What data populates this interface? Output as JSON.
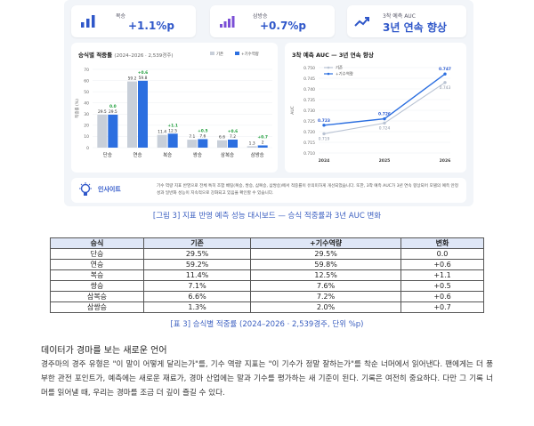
{
  "kpis": [
    {
      "label": "복승",
      "value": "+1.1%p",
      "icon": "bar-chart-icon"
    },
    {
      "label": "삼방승",
      "value": "+0.7%p",
      "icon": "growth-bar-icon"
    },
    {
      "label": "3착 예측 AUC",
      "value": "3년 연속 향상",
      "icon": "trend-up-icon"
    }
  ],
  "left_chart": {
    "title": "승식별 적중률",
    "subtitle": "(2024–2026 · 2,539경주)",
    "legend": [
      "기존",
      "+기수역량"
    ]
  },
  "right_chart": {
    "title": "3착 예측 AUC — 3년 연속 향상",
    "legend": [
      "기존",
      "+기수역량"
    ]
  },
  "chart_data": [
    {
      "type": "bar",
      "title": "승식별 적중률 (2024–2026 · 2,539경주)",
      "ylabel": "적중률 (%)",
      "ylim": [
        0,
        70
      ],
      "yticks": [
        0,
        10,
        20,
        30,
        40,
        50,
        60,
        70
      ],
      "categories": [
        "단승",
        "연승",
        "복승",
        "쌍승",
        "삼복승",
        "삼쌍승"
      ],
      "series": [
        {
          "name": "기존",
          "values": [
            29.5,
            59.2,
            11.4,
            7.1,
            6.6,
            1.3
          ],
          "color": "#c8cfd9"
        },
        {
          "name": "+기수역량",
          "values": [
            29.5,
            59.8,
            12.5,
            7.6,
            7.2,
            2.0
          ],
          "color": "#2c6fe0"
        }
      ],
      "delta_labels": [
        "0.0",
        "+0.6",
        "+1.1",
        "+0.5",
        "+0.6",
        "+0.7"
      ],
      "legend_position": "top-right"
    },
    {
      "type": "line",
      "title": "3착 예측 AUC — 3년 연속 향상",
      "ylabel": "AUC",
      "x": [
        "2024",
        "2025",
        "2026"
      ],
      "ylim": [
        0.71,
        0.75
      ],
      "yticks": [
        0.71,
        0.715,
        0.72,
        0.725,
        0.73,
        0.735,
        0.74,
        0.745,
        0.75
      ],
      "series": [
        {
          "name": "기존",
          "values": [
            0.719,
            0.724,
            0.743
          ],
          "labels": [
            "0.719",
            "0.724",
            "0.743"
          ],
          "color": "#b9c3d3"
        },
        {
          "name": "+기수역량",
          "values": [
            0.723,
            0.726,
            0.747
          ],
          "labels": [
            "0.723",
            "0.726",
            "0.747"
          ],
          "color": "#2c6fe0"
        }
      ],
      "legend_position": "top-left"
    }
  ],
  "insight": {
    "label": "인사이트",
    "text": "기수 역량 지표 반영으로 전체 특히 조합 베팅(복승, 쌍승, 삼복승, 삼쌍승)에서 적중률이 유의미하게 개선되었습니다. 또한, 3착 예측 AUC가 3년 연속 향상되어 모델의 예측 안정성과 일반화 성능이 지속적으로 강화되고 있음을 확인할 수 있습니다."
  },
  "caption_figure": "[그림 3] 지표 반영 예측 성능 대시보드 — 승식 적중률과 3년 AUC 변화",
  "table": {
    "headers": [
      "승식",
      "기존",
      "+기수역량",
      "변화"
    ],
    "rows": [
      [
        "단승",
        "29.5%",
        "29.5%",
        "0.0"
      ],
      [
        "연승",
        "59.2%",
        "59.8%",
        "+0.6"
      ],
      [
        "복승",
        "11.4%",
        "12.5%",
        "+1.1"
      ],
      [
        "쌍승",
        "7.1%",
        "7.6%",
        "+0.5"
      ],
      [
        "삼복승",
        "6.6%",
        "7.2%",
        "+0.6"
      ],
      [
        "삼쌍승",
        "1.3%",
        "2.0%",
        "+0.7"
      ]
    ]
  },
  "caption_table": "[표 3] 승식별 적중률 (2024–2026 · 2,539경주, 단위 %p)",
  "section": {
    "title": "데이터가 경마를 보는 새로운 언어",
    "body": "경주마의 경주 유형은 \"이 말이 어떻게 달리는가\"를, 기수 역량 지표는 \"이 기수가 정말 잘하는가\"를 착순 너머에서 읽어낸다. 팬에게는 더 풍부한 관전 포인트가, 예측에는 새로운 재료가, 경마 산업에는 말과 기수를 평가하는 새 기준이 된다. 기록은 여전히 중요하다. 다만 그 기록 너머를 읽어낼 때, 우리는 경마를 조금 더 깊이 즐길 수 있다."
  }
}
